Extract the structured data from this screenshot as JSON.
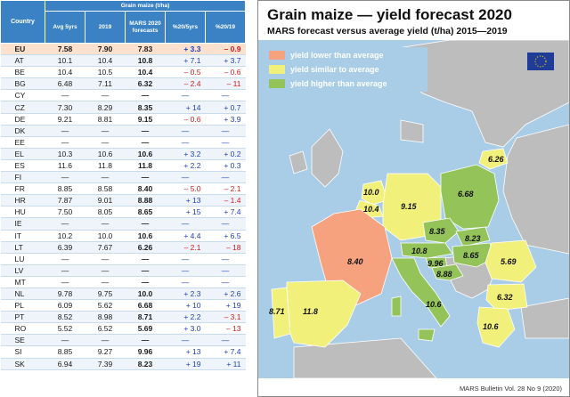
{
  "table": {
    "header_country": "Country",
    "header_group": "Grain maize (t/ha)",
    "columns": [
      "Avg 5yrs",
      "2019",
      "MARS 2020 forecasts",
      "%20/5yrs",
      "%20/19"
    ],
    "rows": [
      {
        "c": "EU",
        "avg": "7.58",
        "y19": "7.90",
        "fc": "7.83",
        "p5": "+ 3.3",
        "p19": "– 0.9"
      },
      {
        "c": "AT",
        "avg": "10.1",
        "y19": "10.4",
        "fc": "10.8",
        "p5": "+ 7.1",
        "p19": "+ 3.7"
      },
      {
        "c": "BE",
        "avg": "10.4",
        "y19": "10.5",
        "fc": "10.4",
        "p5": "– 0.5",
        "p19": "– 0.6"
      },
      {
        "c": "BG",
        "avg": "6.48",
        "y19": "7.11",
        "fc": "6.32",
        "p5": "– 2.4",
        "p19": "– 11"
      },
      {
        "c": "CY",
        "avg": "—",
        "y19": "—",
        "fc": "—",
        "p5": "—",
        "p19": "—"
      },
      {
        "c": "CZ",
        "avg": "7.30",
        "y19": "8.29",
        "fc": "8.35",
        "p5": "+ 14",
        "p19": "+ 0.7"
      },
      {
        "c": "DE",
        "avg": "9.21",
        "y19": "8.81",
        "fc": "9.15",
        "p5": "– 0.6",
        "p19": "+ 3.9"
      },
      {
        "c": "DK",
        "avg": "—",
        "y19": "—",
        "fc": "—",
        "p5": "—",
        "p19": "—"
      },
      {
        "c": "EE",
        "avg": "—",
        "y19": "—",
        "fc": "—",
        "p5": "—",
        "p19": "—"
      },
      {
        "c": "EL",
        "avg": "10.3",
        "y19": "10.6",
        "fc": "10.6",
        "p5": "+ 3.2",
        "p19": "+ 0.2"
      },
      {
        "c": "ES",
        "avg": "11.6",
        "y19": "11.8",
        "fc": "11.8",
        "p5": "+ 2.2",
        "p19": "+ 0.3"
      },
      {
        "c": "FI",
        "avg": "—",
        "y19": "—",
        "fc": "—",
        "p5": "—",
        "p19": "—"
      },
      {
        "c": "FR",
        "avg": "8.85",
        "y19": "8.58",
        "fc": "8.40",
        "p5": "– 5.0",
        "p19": "– 2.1"
      },
      {
        "c": "HR",
        "avg": "7.87",
        "y19": "9.01",
        "fc": "8.88",
        "p5": "+ 13",
        "p19": "– 1.4"
      },
      {
        "c": "HU",
        "avg": "7.50",
        "y19": "8.05",
        "fc": "8.65",
        "p5": "+ 15",
        "p19": "+ 7.4"
      },
      {
        "c": "IE",
        "avg": "—",
        "y19": "—",
        "fc": "—",
        "p5": "—",
        "p19": "—"
      },
      {
        "c": "IT",
        "avg": "10.2",
        "y19": "10.0",
        "fc": "10.6",
        "p5": "+ 4.4",
        "p19": "+ 6.5"
      },
      {
        "c": "LT",
        "avg": "6.39",
        "y19": "7.67",
        "fc": "6.26",
        "p5": "– 2.1",
        "p19": "– 18"
      },
      {
        "c": "LU",
        "avg": "—",
        "y19": "—",
        "fc": "—",
        "p5": "—",
        "p19": "—"
      },
      {
        "c": "LV",
        "avg": "—",
        "y19": "—",
        "fc": "—",
        "p5": "—",
        "p19": "—"
      },
      {
        "c": "MT",
        "avg": "—",
        "y19": "—",
        "fc": "—",
        "p5": "—",
        "p19": "—"
      },
      {
        "c": "NL",
        "avg": "9.78",
        "y19": "9.75",
        "fc": "10.0",
        "p5": "+ 2.3",
        "p19": "+ 2.6"
      },
      {
        "c": "PL",
        "avg": "6.09",
        "y19": "5.62",
        "fc": "6.68",
        "p5": "+ 10",
        "p19": "+ 19"
      },
      {
        "c": "PT",
        "avg": "8.52",
        "y19": "8.98",
        "fc": "8.71",
        "p5": "+ 2.2",
        "p19": "– 3.1"
      },
      {
        "c": "RO",
        "avg": "5.52",
        "y19": "6.52",
        "fc": "5.69",
        "p5": "+ 3.0",
        "p19": "– 13"
      },
      {
        "c": "SE",
        "avg": "—",
        "y19": "—",
        "fc": "—",
        "p5": "—",
        "p19": "—"
      },
      {
        "c": "SI",
        "avg": "8.85",
        "y19": "9.27",
        "fc": "9.96",
        "p5": "+ 13",
        "p19": "+ 7.4"
      },
      {
        "c": "SK",
        "avg": "6.94",
        "y19": "7.39",
        "fc": "8.23",
        "p5": "+ 19",
        "p19": "+ 11"
      }
    ]
  },
  "map": {
    "title": "Grain maize — yield forecast 2020",
    "subtitle": "MARS forecast versus average yield (t/ha) 2015—2019",
    "legend": [
      {
        "label": "yield lower than average",
        "color": "#f6a27f"
      },
      {
        "label": "yield similar to average",
        "color": "#f1f07a"
      },
      {
        "label": "yield higher than average",
        "color": "#94c35a"
      }
    ],
    "labels": {
      "lt": "6.26",
      "nl": "10.0",
      "be": "10.4",
      "de": "9.15",
      "pl": "6.68",
      "cz": "8.35",
      "sk": "8.23",
      "at": "10.8",
      "hu": "8.65",
      "si": "9.96",
      "hr": "8.88",
      "ro": "5.69",
      "fr": "8.40",
      "it": "10.6",
      "bg": "6.32",
      "pt": "8.71",
      "es": "11.8",
      "el": "10.6"
    },
    "credit": "MARS Bulletin Vol. 28 No 9 (2020)"
  },
  "colors": {
    "lower": "#f6a27f",
    "similar": "#f1f07a",
    "higher": "#94c35a",
    "other": "#bdbdbd",
    "sea": "#a9cde6"
  }
}
